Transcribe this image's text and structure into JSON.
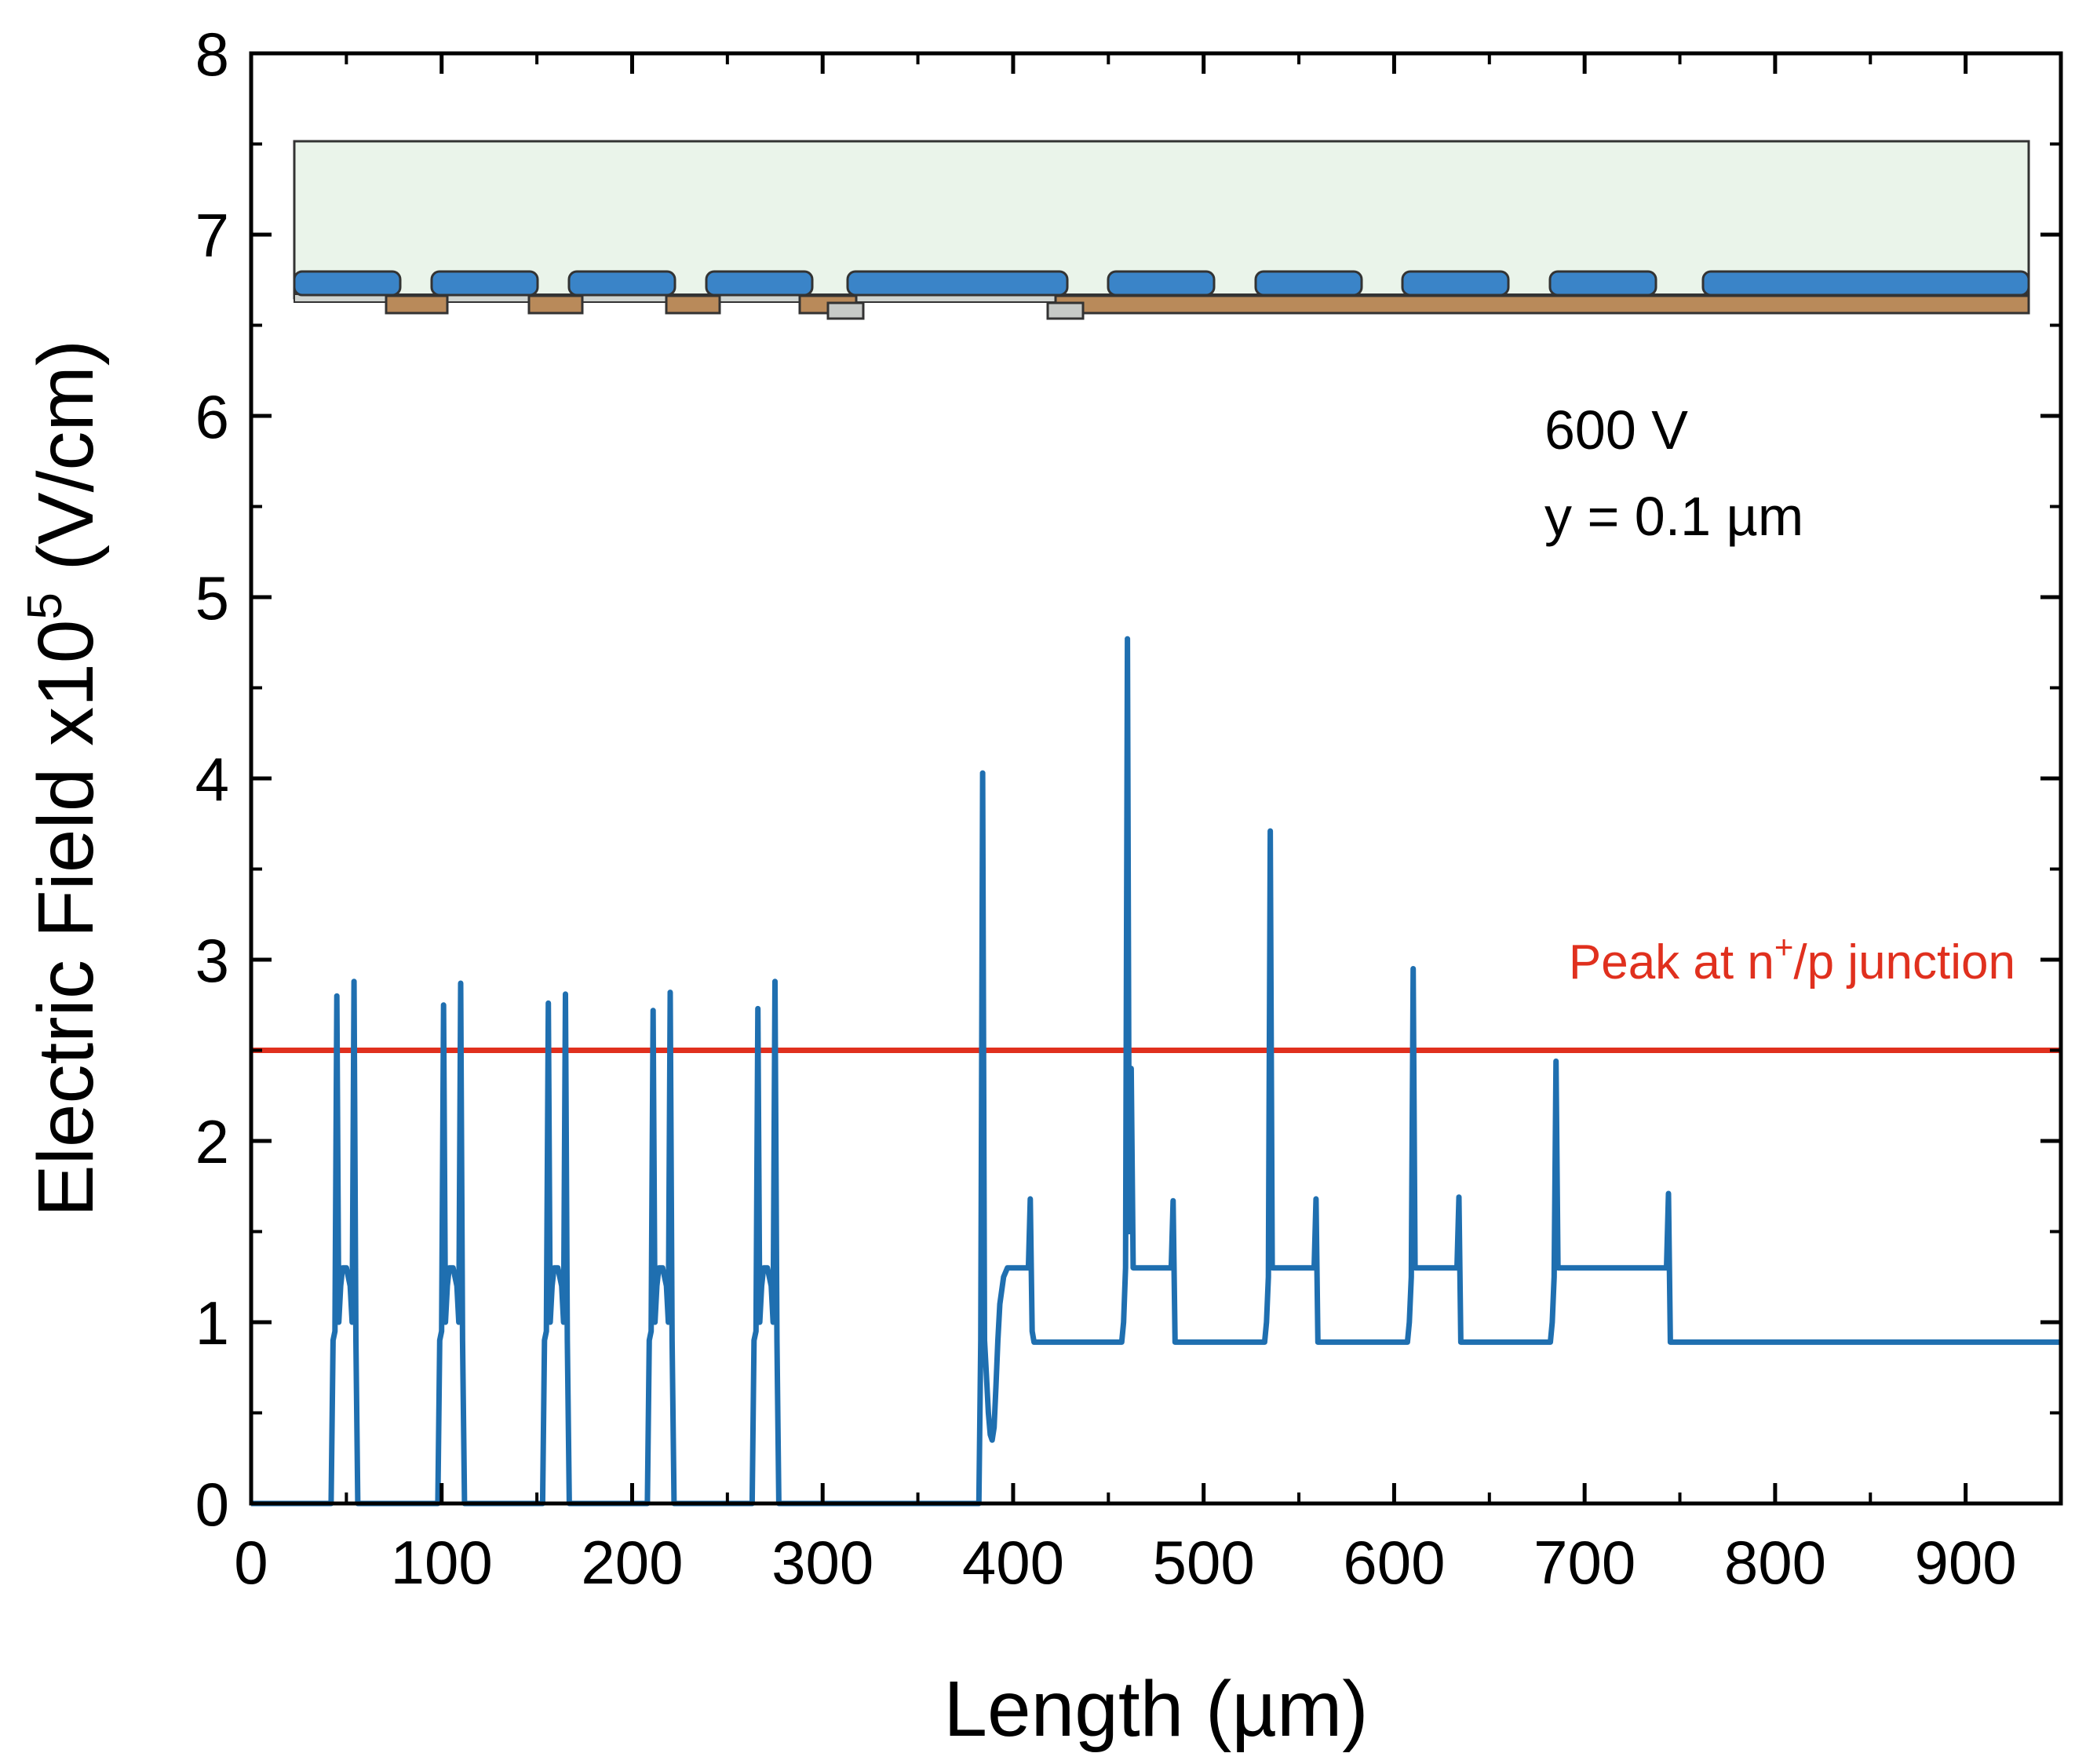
{
  "chart_data": {
    "type": "line",
    "title": "",
    "xlabel": "Length (µm)",
    "ylabel_main": "Electric Field x10",
    "ylabel_sup": "5",
    "ylabel_unit": " (V/cm)",
    "xlim": [
      0,
      950
    ],
    "ylim": [
      0,
      8
    ],
    "xticks": [
      0,
      100,
      200,
      300,
      400,
      500,
      600,
      700,
      800,
      900
    ],
    "xtick_labels": [
      "0",
      "100",
      "200",
      "300",
      "400",
      "500",
      "600",
      "700",
      "800",
      "900"
    ],
    "yticks": [
      0,
      1,
      2,
      3,
      4,
      5,
      6,
      7,
      8
    ],
    "ytick_labels": [
      "0",
      "1",
      "2",
      "3",
      "4",
      "5",
      "6",
      "7",
      "8"
    ],
    "annotations": {
      "voltage": "600 V",
      "depth": "y = 0.1 µm"
    },
    "reference_line": {
      "y": 2.5,
      "color": "#e0301e",
      "label_prefix": "Peak at n",
      "label_sup": "+",
      "label_suffix": "/p junction"
    },
    "series": [
      {
        "name": "Electric field at y = 0.1 µm",
        "color": "#1f6fb0",
        "points": [
          [
            0,
            0
          ],
          [
            42,
            0
          ],
          [
            43,
            0.9
          ],
          [
            44,
            0.95
          ],
          [
            45,
            2.8
          ],
          [
            46,
            1.0
          ],
          [
            47,
            1.2
          ],
          [
            48,
            1.3
          ],
          [
            50,
            1.3
          ],
          [
            52,
            1.2
          ],
          [
            53,
            1.0
          ],
          [
            54,
            2.88
          ],
          [
            55,
            0.9
          ],
          [
            56,
            0
          ],
          [
            98,
            0
          ],
          [
            99,
            0.9
          ],
          [
            100,
            0.95
          ],
          [
            101,
            2.75
          ],
          [
            102,
            1.0
          ],
          [
            103,
            1.2
          ],
          [
            104,
            1.3
          ],
          [
            106,
            1.3
          ],
          [
            108,
            1.2
          ],
          [
            109,
            1.0
          ],
          [
            110,
            2.87
          ],
          [
            111,
            0.9
          ],
          [
            112,
            0
          ],
          [
            153,
            0
          ],
          [
            154,
            0.9
          ],
          [
            155,
            0.95
          ],
          [
            156,
            2.76
          ],
          [
            157,
            1.0
          ],
          [
            158,
            1.2
          ],
          [
            159,
            1.3
          ],
          [
            161,
            1.3
          ],
          [
            163,
            1.2
          ],
          [
            164,
            1.0
          ],
          [
            165,
            2.81
          ],
          [
            166,
            0.9
          ],
          [
            167,
            0
          ],
          [
            208,
            0
          ],
          [
            209,
            0.9
          ],
          [
            210,
            0.95
          ],
          [
            211,
            2.72
          ],
          [
            212,
            1.0
          ],
          [
            213,
            1.2
          ],
          [
            214,
            1.3
          ],
          [
            216,
            1.3
          ],
          [
            218,
            1.2
          ],
          [
            219,
            1.0
          ],
          [
            220,
            2.82
          ],
          [
            221,
            0.9
          ],
          [
            222,
            0
          ],
          [
            263,
            0
          ],
          [
            264,
            0.9
          ],
          [
            265,
            0.95
          ],
          [
            266,
            2.73
          ],
          [
            267,
            1.0
          ],
          [
            268,
            1.2
          ],
          [
            269,
            1.3
          ],
          [
            271,
            1.3
          ],
          [
            273,
            1.2
          ],
          [
            274,
            1.0
          ],
          [
            275,
            2.88
          ],
          [
            276,
            0.9
          ],
          [
            277,
            0
          ],
          [
            382,
            0
          ],
          [
            383,
            0.9
          ],
          [
            384,
            4.03
          ],
          [
            385,
            0.9
          ],
          [
            386,
            0.7
          ],
          [
            387,
            0.5
          ],
          [
            388,
            0.38
          ],
          [
            389,
            0.35
          ],
          [
            390,
            0.42
          ],
          [
            391,
            0.65
          ],
          [
            392,
            0.9
          ],
          [
            393,
            1.1
          ],
          [
            395,
            1.25
          ],
          [
            397,
            1.3
          ],
          [
            408,
            1.3
          ],
          [
            409,
            1.68
          ],
          [
            410,
            0.95
          ],
          [
            411,
            0.89
          ],
          [
            457,
            0.89
          ],
          [
            458,
            1.0
          ],
          [
            459,
            1.3
          ],
          [
            460,
            4.77
          ],
          [
            461,
            1.5
          ],
          [
            462,
            2.4
          ],
          [
            463,
            1.3
          ],
          [
            483,
            1.3
          ],
          [
            484,
            1.67
          ],
          [
            485,
            0.89
          ],
          [
            532,
            0.89
          ],
          [
            533,
            1.0
          ],
          [
            534,
            1.25
          ],
          [
            535,
            3.71
          ],
          [
            536,
            1.3
          ],
          [
            558,
            1.3
          ],
          [
            559,
            1.68
          ],
          [
            560,
            0.89
          ],
          [
            607,
            0.89
          ],
          [
            608,
            1.0
          ],
          [
            609,
            1.25
          ],
          [
            610,
            2.95
          ],
          [
            611,
            1.3
          ],
          [
            633,
            1.3
          ],
          [
            634,
            1.69
          ],
          [
            635,
            0.89
          ],
          [
            682,
            0.89
          ],
          [
            683,
            1.0
          ],
          [
            684,
            1.25
          ],
          [
            685,
            2.44
          ],
          [
            686,
            1.3
          ],
          [
            743,
            1.3
          ],
          [
            744,
            1.71
          ],
          [
            745,
            0.89
          ],
          [
            950,
            0.89
          ]
        ]
      }
    ],
    "inset_structure": {
      "description": "Device cross-section schematic",
      "colors": {
        "oxide": "#eaf4ea",
        "plate": "#3a84c8",
        "n_region": "#b98a5a",
        "outline": "#333333"
      }
    }
  }
}
